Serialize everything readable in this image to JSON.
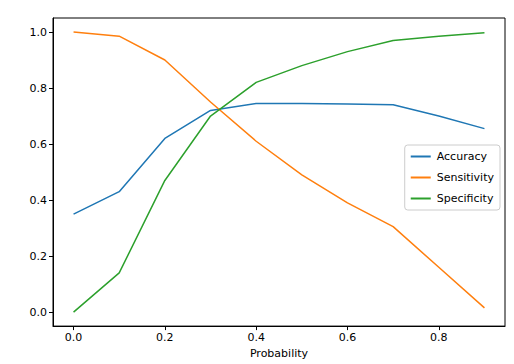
{
  "chart_data": {
    "type": "line",
    "x_label": "Probability",
    "x": [
      0.0,
      0.1,
      0.2,
      0.3,
      0.4,
      0.5,
      0.6,
      0.7,
      0.8,
      0.9
    ],
    "series": [
      {
        "name": "Accuracy",
        "color": "#1f77b4",
        "values": [
          0.35,
          0.43,
          0.62,
          0.72,
          0.745,
          0.745,
          0.743,
          0.74,
          0.7,
          0.655
        ]
      },
      {
        "name": "Sensitivity",
        "color": "#ff7f0e",
        "values": [
          1.0,
          0.985,
          0.9,
          0.75,
          0.61,
          0.49,
          0.39,
          0.305,
          0.16,
          0.015
        ]
      },
      {
        "name": "Specificity",
        "color": "#2ca02c",
        "values": [
          0.0,
          0.14,
          0.47,
          0.7,
          0.82,
          0.88,
          0.93,
          0.97,
          0.985,
          0.997
        ]
      }
    ],
    "xlim": [
      -0.045,
      0.945
    ],
    "xticks": [
      {
        "value": 0,
        "label": "0.0"
      },
      0.2,
      0.4,
      0.6,
      0.8
    ],
    "ylim": [
      -0.05,
      1.05
    ],
    "yticks": [
      {
        "value": 0,
        "label": "0.0"
      },
      0.2,
      0.4,
      0.6,
      0.8,
      {
        "value": 1,
        "label": "1.0"
      }
    ],
    "grid": false,
    "legend": "center right"
  }
}
